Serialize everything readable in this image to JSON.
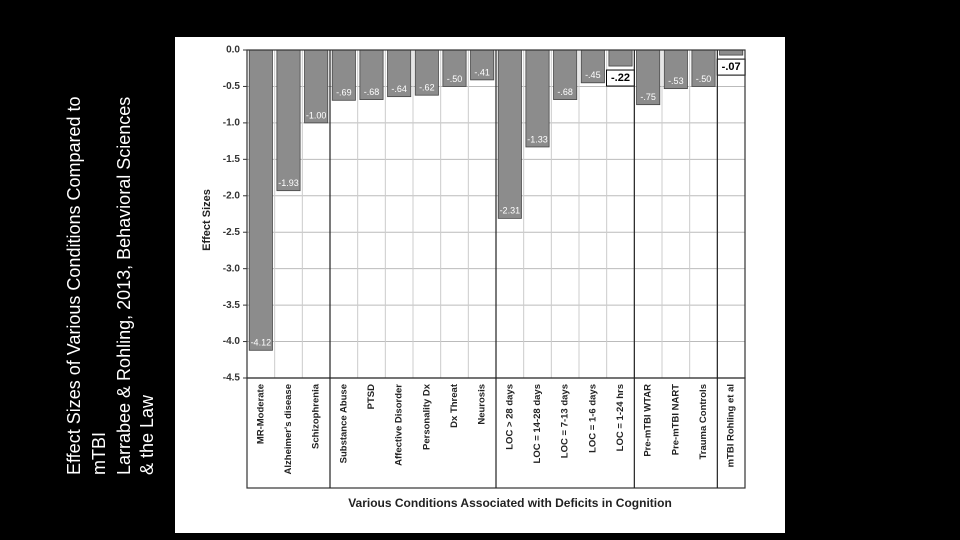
{
  "slide": {
    "title_lines": [
      "Effect Sizes of Various Conditions Compared to",
      "mTBI",
      "Larrabee & Rohling, 2013, Behavioral Sciences",
      "& the Law"
    ]
  },
  "chart_data": {
    "type": "bar",
    "y_label": "Effect Sizes",
    "x_label": "Various Conditions Associated with Deficits in Cognition",
    "categories": [
      "MR-Moderate",
      "Alzheimer's disease",
      "Schizophrenia",
      "Substance Abuse",
      "PTSD",
      "Affective Disorder",
      "Personality Dx",
      "Dx Threat",
      "Neurosis",
      "LOC > 28 days",
      "LOC = 14-28 days",
      "LOC = 7-13 days",
      "LOC = 1-6 days",
      "LOC = 1-24 hrs",
      "Pre-mTBI WTAR",
      "Pre-mTBI NART",
      "Trauma Controls",
      "mTBI Rohling et al"
    ],
    "values": [
      -4.12,
      -1.93,
      -1.0,
      -0.69,
      -0.68,
      -0.64,
      -0.62,
      -0.5,
      -0.41,
      -2.31,
      -1.33,
      -0.68,
      -0.45,
      -0.22,
      -0.75,
      -0.53,
      -0.5,
      -0.07
    ],
    "value_labels": [
      "-4.12",
      "-1.93",
      "-1.00",
      "-.69",
      "-.68",
      "-.64",
      "-.62",
      "-.50",
      "-.41",
      "-2.31",
      "-1.33",
      "-.68",
      "-.45",
      "-.22",
      "-.75",
      "-.53",
      "-.50",
      "-.07"
    ],
    "color": "#8c8c8c",
    "ylim": [
      0,
      -4.5
    ],
    "yticks": [
      {
        "value": 0,
        "label": "0.0"
      },
      -0.5,
      {
        "value": -1,
        "label": "-1.0"
      },
      -1.5,
      {
        "value": -2,
        "label": "-2.0"
      },
      -2.5,
      {
        "value": -3,
        "label": "-3.0"
      },
      -3.5,
      {
        "value": -4,
        "label": "-4.0"
      },
      -4.5
    ],
    "grid": true
  }
}
